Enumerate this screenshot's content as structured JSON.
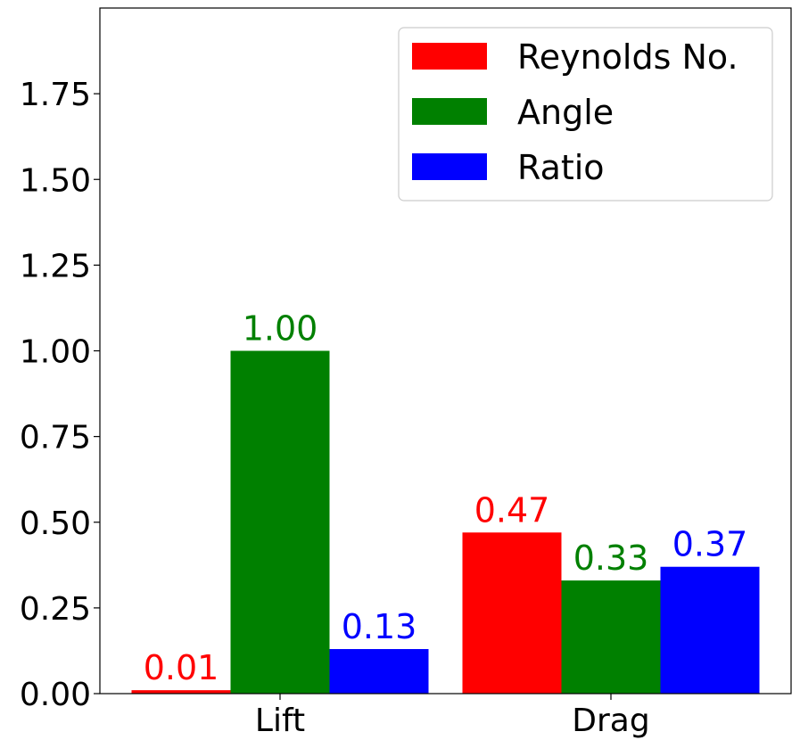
{
  "chart_data": {
    "type": "bar",
    "categories": [
      "Lift",
      "Drag"
    ],
    "series": [
      {
        "name": "Reynolds No.",
        "color": "#ff0000",
        "values": [
          0.01,
          0.47
        ],
        "labels": [
          "0.01",
          "0.47"
        ]
      },
      {
        "name": "Angle",
        "color": "#008000",
        "values": [
          1.0,
          0.33
        ],
        "labels": [
          "1.00",
          "0.33"
        ]
      },
      {
        "name": "Ratio",
        "color": "#0000ff",
        "values": [
          0.13,
          0.37
        ],
        "labels": [
          "0.13",
          "0.37"
        ]
      }
    ],
    "ylim": [
      0,
      2.0
    ],
    "yticks": [
      0.0,
      0.25,
      0.5,
      0.75,
      1.0,
      1.25,
      1.5,
      1.75
    ],
    "ytick_labels": [
      "0.00",
      "0.25",
      "0.50",
      "0.75",
      "1.00",
      "1.25",
      "1.50",
      "1.75"
    ],
    "grid": false,
    "legend_position": "top-right"
  }
}
